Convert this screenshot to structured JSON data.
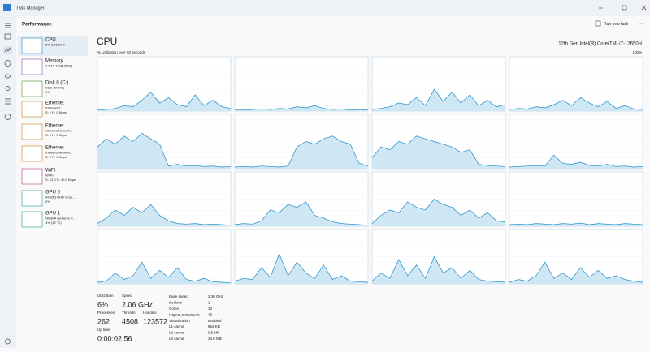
{
  "window_title": "Task Manager",
  "header": {
    "title": "Performance",
    "run_new_task": "Run new task",
    "more": "···"
  },
  "sidebar": [
    {
      "name": "CPU",
      "lines": [
        "6% 2.06 GHz"
      ]
    },
    {
      "name": "Memory",
      "lines": [
        "7.9/15.7 GB (50%)"
      ]
    },
    {
      "name": "Disk 0 (C:)",
      "lines": [
        "SSD (NVMe)",
        "1%"
      ]
    },
    {
      "name": "Ethernet",
      "lines": [
        "Ethernet 2",
        "S: 0 R: 0 Kbps"
      ]
    },
    {
      "name": "Ethernet",
      "lines": [
        "VMware Network...",
        "S: 0 R: 0 Kbps"
      ]
    },
    {
      "name": "Ethernet",
      "lines": [
        "VMware Network...",
        "S: 0 R: 0 Kbps"
      ]
    },
    {
      "name": "WiFi",
      "lines": [
        "Wi-Fi",
        "S: 12.0 R: 40.0 Kbps"
      ]
    },
    {
      "name": "GPU 0",
      "lines": [
        "Intel(R) UHD Grap...",
        "2%"
      ]
    },
    {
      "name": "GPU 1",
      "lines": [
        "NVIDIA GeForce R...",
        "1% (32 °C)"
      ]
    }
  ],
  "main": {
    "title": "CPU",
    "processor": "12th Gen Intel(R) Core(TM) i7-12650H",
    "graph_label": "% Utilization over 60 seconds",
    "graph_max": "100%",
    "ylim": [
      0,
      100
    ],
    "graphs": [
      [
        2,
        3,
        5,
        10,
        8,
        20,
        35,
        15,
        25,
        12,
        8,
        30,
        10,
        20,
        8,
        5
      ],
      [
        2,
        2,
        3,
        4,
        3,
        5,
        4,
        8,
        6,
        10,
        5,
        3,
        4,
        2,
        3,
        2
      ],
      [
        3,
        5,
        8,
        15,
        12,
        25,
        10,
        40,
        18,
        35,
        15,
        30,
        10,
        20,
        8,
        12
      ],
      [
        3,
        5,
        4,
        8,
        6,
        12,
        20,
        10,
        25,
        15,
        8,
        18,
        5,
        10,
        4,
        3
      ],
      [
        40,
        55,
        45,
        60,
        50,
        65,
        55,
        45,
        5,
        8,
        5,
        6,
        4,
        5,
        3,
        4
      ],
      [
        3,
        4,
        3,
        5,
        4,
        3,
        5,
        40,
        50,
        45,
        55,
        60,
        50,
        45,
        10,
        5
      ],
      [
        20,
        40,
        35,
        50,
        45,
        60,
        55,
        50,
        45,
        40,
        30,
        35,
        8,
        6,
        5,
        4
      ],
      [
        3,
        4,
        5,
        6,
        5,
        25,
        10,
        8,
        12,
        6,
        5,
        8,
        4,
        5,
        3,
        4
      ],
      [
        5,
        15,
        30,
        20,
        35,
        25,
        40,
        20,
        10,
        5,
        4,
        5,
        3,
        4,
        3,
        2
      ],
      [
        3,
        5,
        4,
        10,
        30,
        25,
        40,
        35,
        45,
        20,
        15,
        8,
        5,
        4,
        3,
        2
      ],
      [
        5,
        20,
        30,
        25,
        45,
        35,
        30,
        50,
        40,
        35,
        20,
        30,
        15,
        25,
        10,
        8
      ],
      [
        3,
        4,
        3,
        5,
        4,
        3,
        5,
        4,
        6,
        3,
        5,
        4,
        3,
        5,
        4,
        3
      ],
      [
        3,
        5,
        20,
        8,
        15,
        40,
        10,
        25,
        12,
        30,
        8,
        5,
        10,
        4,
        3,
        2
      ],
      [
        5,
        10,
        8,
        30,
        12,
        55,
        15,
        40,
        20,
        10,
        35,
        8,
        15,
        5,
        4,
        3
      ],
      [
        5,
        20,
        10,
        45,
        15,
        35,
        10,
        50,
        20,
        30,
        10,
        25,
        8,
        5,
        4,
        3
      ],
      [
        3,
        8,
        5,
        15,
        40,
        10,
        20,
        8,
        30,
        12,
        25,
        10,
        15,
        8,
        5,
        3
      ]
    ]
  },
  "stats": [
    {
      "label": "Utilization",
      "value": "6%"
    },
    {
      "label": "Speed",
      "value": "2.06 GHz"
    },
    {
      "label": "Processes",
      "value": "262"
    },
    {
      "label": "Threads",
      "value": "4508"
    },
    {
      "label": "Handles",
      "value": "123572"
    },
    {
      "label": "Up time",
      "value": "0:00:02:56"
    }
  ],
  "details": [
    [
      "Base speed",
      "2.30 GHz"
    ],
    [
      "Sockets",
      "1"
    ],
    [
      "Cores",
      "10"
    ],
    [
      "Logical processors",
      "16"
    ],
    [
      "Virtualization",
      "Enabled"
    ],
    [
      "L1 cache",
      "864 KB"
    ],
    [
      "L2 cache",
      "9.5 MB"
    ],
    [
      "L3 cache",
      "24.0 MB"
    ]
  ]
}
